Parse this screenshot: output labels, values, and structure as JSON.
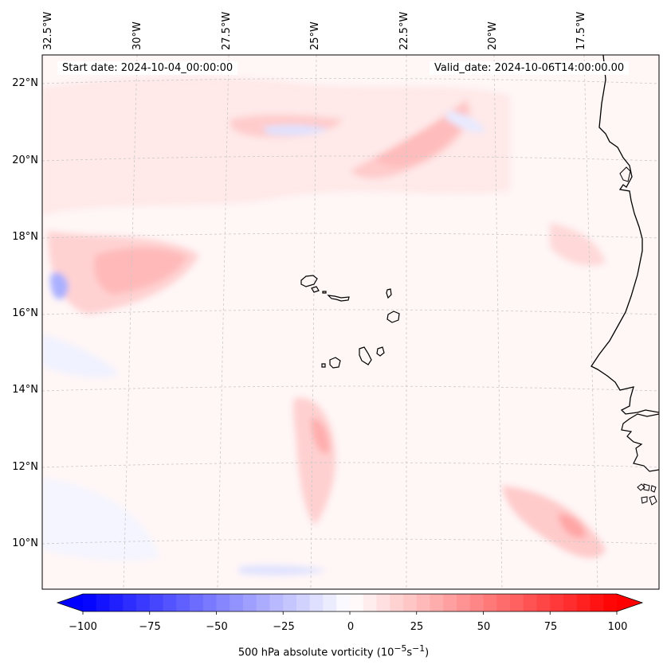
{
  "map": {
    "start_date": "Start date: 2024-10-04_00:00:00",
    "valid_date": "Valid_date: 2024-10-06T14:00:00.00",
    "lon_labels": [
      "32.5°W",
      "30°W",
      "27.5°W",
      "25°W",
      "22.5°W",
      "20°W",
      "17.5°W"
    ],
    "lat_labels": [
      "22°N",
      "20°N",
      "18°N",
      "16°N",
      "14°N",
      "12°N",
      "10°N"
    ],
    "field_name": "500 hPa absolute vorticity",
    "colors": {
      "coast": "#000000",
      "grid": "#c8c8c8",
      "weak_positive": "#ffe8e8",
      "moderate_positive": "#ffbcbc",
      "strong_positive": "#ff8f8f",
      "weak_negative": "#eef0ff",
      "moderate_negative": "#b8bcff"
    },
    "features": [
      "Cape Verde Islands",
      "West African coast"
    ]
  },
  "colorbar": {
    "min": -100,
    "max": 100,
    "step": 5,
    "ticks": [
      "−100",
      "−75",
      "−50",
      "−25",
      "0",
      "25",
      "50",
      "75",
      "100"
    ],
    "label_html": "500 hPa absolute vorticity (10<sup>−5</sup>s<sup>−1</sup>)",
    "low_color": "#0000ff",
    "high_color": "#ff0000",
    "mid_color": "#ffffff"
  }
}
